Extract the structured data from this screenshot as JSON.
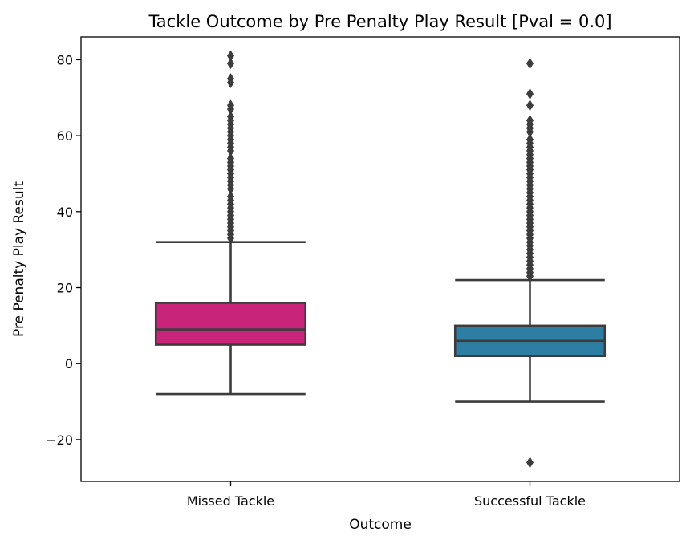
{
  "chart_data": {
    "type": "box",
    "title": "Tackle Outcome by Pre Penalty Play Result [Pval = 0.0]",
    "xlabel": "Outcome",
    "ylabel": "Pre Penalty Play Result",
    "ylim": [
      -31,
      86
    ],
    "yticks": [
      -20,
      0,
      20,
      40,
      60,
      80
    ],
    "ytick_labels": [
      "−20",
      "0",
      "20",
      "40",
      "60",
      "80"
    ],
    "grid": false,
    "legend": "none",
    "categories": [
      "Missed Tackle",
      "Successful Tackle"
    ],
    "boxes": [
      {
        "category": "Missed Tackle",
        "color": "#c8257a",
        "whisker_low": -8,
        "q1": 5,
        "median": 9,
        "q3": 16,
        "whisker_high": 32,
        "outliers": [
          33,
          34,
          35,
          36,
          37,
          38,
          39,
          40,
          41,
          42,
          43,
          44,
          46,
          47,
          48,
          49,
          50,
          51,
          52,
          53,
          54,
          56,
          57,
          58,
          59,
          60,
          61,
          62,
          63,
          64,
          65,
          67,
          68,
          74,
          75,
          79,
          81
        ]
      },
      {
        "category": "Successful Tackle",
        "color": "#2e7ea4",
        "whisker_low": -10,
        "q1": 2,
        "median": 6,
        "q3": 10,
        "whisker_high": 22,
        "outliers": [
          -26,
          23,
          24,
          25,
          26,
          27,
          28,
          29,
          30,
          31,
          32,
          33,
          34,
          35,
          36,
          37,
          38,
          39,
          40,
          41,
          42,
          43,
          44,
          45,
          46,
          47,
          48,
          49,
          50,
          51,
          52,
          53,
          54,
          55,
          56,
          57,
          58,
          59,
          61,
          62,
          63,
          64,
          68,
          71,
          79
        ]
      }
    ],
    "line_color": "#3c3c3c",
    "flier_color": "#3c3c3c"
  }
}
